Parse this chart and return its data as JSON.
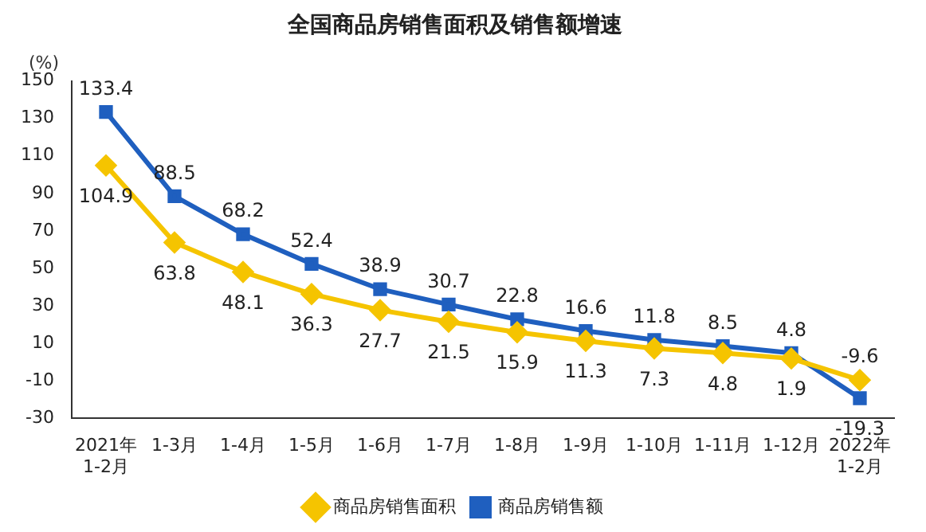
{
  "chart_data": {
    "type": "line",
    "title": "全国商品房销售面积及销售额增速",
    "ylabel": "(%)",
    "categories": [
      "2021年\n1-2月",
      "1-3月",
      "1-4月",
      "1-5月",
      "1-6月",
      "1-7月",
      "1-8月",
      "1-9月",
      "1-10月",
      "1-11月",
      "1-12月",
      "2022年\n1-2月"
    ],
    "series": [
      {
        "name": "商品房销售面积",
        "color": "#f5c400",
        "marker": "diamond",
        "values": [
          104.9,
          63.8,
          48.1,
          36.3,
          27.7,
          21.5,
          15.9,
          11.3,
          7.3,
          4.8,
          1.9,
          -9.6
        ]
      },
      {
        "name": "商品房销售额",
        "color": "#1f5fbf",
        "marker": "square",
        "values": [
          133.4,
          88.5,
          68.2,
          52.4,
          38.9,
          30.7,
          22.8,
          16.6,
          11.8,
          8.5,
          4.8,
          -19.3
        ]
      }
    ],
    "ylim": [
      -30,
      150
    ],
    "yticks": [
      -30,
      -10,
      10,
      30,
      50,
      70,
      90,
      110,
      130,
      150
    ],
    "grid": false,
    "legend": "bottom",
    "data_labels": true,
    "line_style": "solid"
  }
}
